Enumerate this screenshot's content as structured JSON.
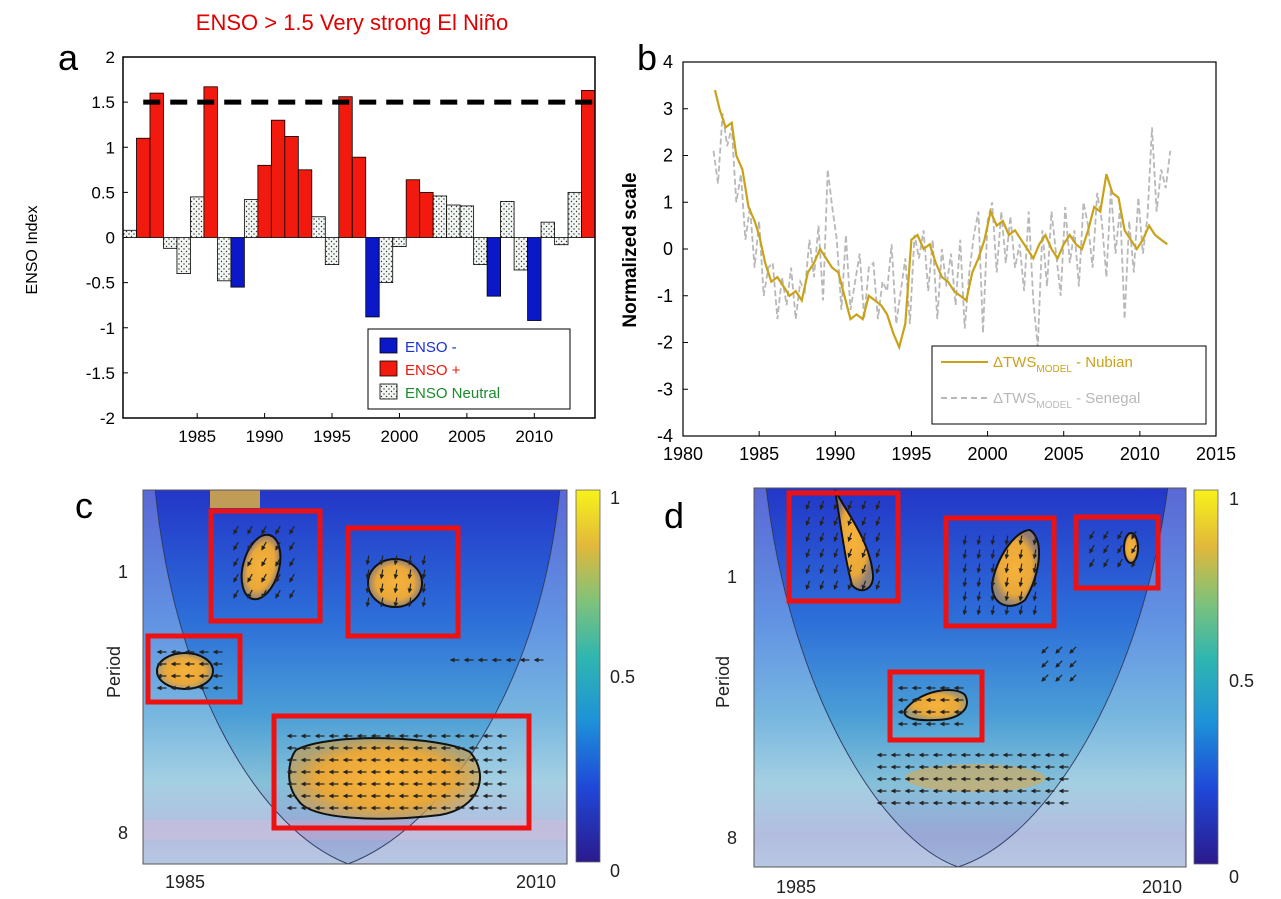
{
  "title": "ENSO > 1.5 Very strong El Niño",
  "panels": {
    "a": "a",
    "b": "b",
    "c": "c",
    "d": "d"
  },
  "chart_data": [
    {
      "panel": "a",
      "type": "bar",
      "ylabel": "ENSO Index",
      "ylim": [
        -2,
        2
      ],
      "yticks": [
        "-2",
        "-1.5",
        "-1",
        "-0.5",
        "0",
        "0.5",
        "1",
        "1.5",
        "2"
      ],
      "xticks": [
        "1985",
        "1990",
        "1995",
        "2000",
        "2005",
        "2010"
      ],
      "threshold": 1.5,
      "colors": {
        "ENSO -": "#0b18c8",
        "ENSO +": "#f21a0e",
        "ENSO Neutral": "#eef4ee"
      },
      "legend": [
        {
          "label": "ENSO -",
          "category": "ENSO -",
          "color": "#1a2fd6"
        },
        {
          "label": "ENSO +",
          "category": "ENSO +",
          "color": "#e8180f"
        },
        {
          "label": "ENSO Neutral",
          "category": "ENSO Neutral",
          "color": "#1a8a2a"
        }
      ],
      "legend_position": "lower-right",
      "years": [
        1980,
        1981,
        1982,
        1983,
        1984,
        1985,
        1986,
        1987,
        1988,
        1989,
        1990,
        1991,
        1992,
        1993,
        1994,
        1995,
        1996,
        1997,
        1998,
        1999,
        2000,
        2001,
        2002,
        2003,
        2004,
        2005,
        2006,
        2007,
        2008,
        2009,
        2010,
        2011,
        2012,
        2013,
        2014
      ],
      "values": [
        0.08,
        1.1,
        1.6,
        -0.12,
        -0.4,
        0.45,
        1.67,
        -0.48,
        -0.55,
        0.42,
        0.8,
        1.3,
        1.12,
        0.75,
        0.23,
        -0.3,
        1.56,
        0.89,
        -0.88,
        -0.5,
        -0.1,
        0.64,
        0.5,
        0.46,
        0.36,
        0.35,
        -0.3,
        -0.65,
        0.4,
        -0.36,
        -0.92,
        0.17,
        -0.08,
        0.5,
        1.63
      ],
      "category": [
        "ENSO Neutral",
        "ENSO +",
        "ENSO +",
        "ENSO Neutral",
        "ENSO Neutral",
        "ENSO Neutral",
        "ENSO +",
        "ENSO Neutral",
        "ENSO -",
        "ENSO Neutral",
        "ENSO +",
        "ENSO +",
        "ENSO +",
        "ENSO +",
        "ENSO Neutral",
        "ENSO Neutral",
        "ENSO +",
        "ENSO +",
        "ENSO -",
        "ENSO Neutral",
        "ENSO Neutral",
        "ENSO +",
        "ENSO +",
        "ENSO Neutral",
        "ENSO Neutral",
        "ENSO Neutral",
        "ENSO Neutral",
        "ENSO -",
        "ENSO Neutral",
        "ENSO Neutral",
        "ENSO -",
        "ENSO Neutral",
        "ENSO Neutral",
        "ENSO Neutral",
        "ENSO +"
      ]
    },
    {
      "panel": "b",
      "type": "line",
      "ylabel": "Normalized scale",
      "xlim": [
        1980,
        2015
      ],
      "ylim": [
        -4,
        4
      ],
      "xticks": [
        "1980",
        "1985",
        "1990",
        "1995",
        "2000",
        "2005",
        "2010",
        "2015"
      ],
      "yticks": [
        "-4",
        "-3",
        "-2",
        "-1",
        "0",
        "1",
        "2",
        "3",
        "4"
      ],
      "legend_position": "lower-right",
      "series": [
        {
          "legend_main": "ΔTWS",
          "legend_sub": "MODEL",
          "legend_suffix": " - Nubian",
          "color": "#c9a21a",
          "style": "solid",
          "x": [
            1982.1,
            1982.4,
            1982.8,
            1983.2,
            1983.5,
            1983.9,
            1984.3,
            1984.7,
            1985.0,
            1985.4,
            1985.8,
            1986.2,
            1986.6,
            1987.0,
            1987.4,
            1987.8,
            1988.2,
            1988.6,
            1989.0,
            1989.4,
            1989.8,
            1990.2,
            1990.6,
            1991.0,
            1991.4,
            1991.8,
            1992.2,
            1992.6,
            1993.0,
            1993.4,
            1993.8,
            1994.2,
            1994.6,
            1995.0,
            1995.4,
            1995.8,
            1996.2,
            1996.6,
            1997.0,
            1997.4,
            1997.8,
            1998.2,
            1998.6,
            1999.0,
            1999.4,
            1999.8,
            2000.2,
            2000.6,
            2001.0,
            2001.4,
            2001.8,
            2002.2,
            2002.6,
            2003.0,
            2003.4,
            2003.8,
            2004.2,
            2004.6,
            2005.0,
            2005.4,
            2005.8,
            2006.2,
            2006.6,
            2007.0,
            2007.4,
            2007.8,
            2008.2,
            2008.6,
            2009.0,
            2009.4,
            2009.8,
            2010.2,
            2010.6,
            2011.0,
            2011.4,
            2011.8
          ],
          "y": [
            3.4,
            3.0,
            2.6,
            2.7,
            2.0,
            1.7,
            0.9,
            0.6,
            0.3,
            -0.3,
            -0.7,
            -0.6,
            -0.8,
            -1.0,
            -0.9,
            -1.1,
            -0.5,
            -0.3,
            0.0,
            -0.2,
            -0.4,
            -0.5,
            -1.0,
            -1.5,
            -1.4,
            -1.5,
            -1.0,
            -1.1,
            -1.2,
            -1.4,
            -1.8,
            -2.1,
            -1.6,
            0.2,
            0.3,
            0.0,
            0.1,
            -0.3,
            -0.6,
            -0.7,
            -0.9,
            -1.0,
            -1.1,
            -0.5,
            -0.2,
            0.2,
            0.8,
            0.5,
            0.6,
            0.3,
            0.4,
            0.2,
            0.0,
            -0.2,
            0.1,
            0.3,
            0.0,
            -0.2,
            0.1,
            0.3,
            0.1,
            0.0,
            0.4,
            0.9,
            0.8,
            1.6,
            1.2,
            1.1,
            0.4,
            0.2,
            0.0,
            0.2,
            0.5,
            0.3,
            0.2,
            0.1
          ]
        },
        {
          "legend_main": "ΔTWS",
          "legend_sub": "MODEL",
          "legend_suffix": " - Senegal",
          "color": "#b8b8b8",
          "style": "dashed",
          "x": [
            1982.0,
            1982.3,
            1982.6,
            1982.9,
            1983.2,
            1983.5,
            1983.8,
            1984.1,
            1984.4,
            1984.7,
            1985.0,
            1985.3,
            1985.6,
            1985.9,
            1986.2,
            1986.5,
            1986.8,
            1987.1,
            1987.4,
            1987.7,
            1988.0,
            1988.3,
            1988.6,
            1988.9,
            1989.2,
            1989.5,
            1989.8,
            1990.1,
            1990.4,
            1990.7,
            1991.0,
            1991.3,
            1991.6,
            1991.9,
            1992.2,
            1992.5,
            1992.8,
            1993.1,
            1993.4,
            1993.7,
            1994.0,
            1994.3,
            1994.6,
            1994.9,
            1995.2,
            1995.5,
            1995.8,
            1996.1,
            1996.4,
            1996.7,
            1997.0,
            1997.3,
            1997.6,
            1997.9,
            1998.2,
            1998.5,
            1998.8,
            1999.1,
            1999.4,
            1999.7,
            2000.0,
            2000.3,
            2000.6,
            2000.9,
            2001.2,
            2001.5,
            2001.8,
            2002.1,
            2002.4,
            2002.7,
            2003.0,
            2003.3,
            2003.6,
            2003.9,
            2004.2,
            2004.5,
            2004.8,
            2005.1,
            2005.4,
            2005.7,
            2006.0,
            2006.3,
            2006.6,
            2006.9,
            2007.2,
            2007.5,
            2007.8,
            2008.1,
            2008.4,
            2008.7,
            2009.0,
            2009.3,
            2009.6,
            2009.9,
            2010.2,
            2010.5,
            2010.8,
            2011.1,
            2011.4,
            2011.7,
            2012.0
          ],
          "y": [
            2.1,
            1.4,
            2.9,
            2.2,
            2.6,
            1.0,
            1.6,
            0.2,
            0.9,
            -0.4,
            0.6,
            -1.0,
            -0.4,
            -0.3,
            -1.5,
            -0.6,
            -1.2,
            -0.4,
            -1.5,
            -0.7,
            -0.9,
            0.2,
            -0.6,
            0.5,
            -1.1,
            1.7,
            0.9,
            0.2,
            -1.3,
            0.3,
            -1.3,
            -0.7,
            -0.1,
            -1.5,
            -0.4,
            -0.3,
            -1.5,
            -0.7,
            -0.9,
            0.1,
            -1.6,
            -0.9,
            -0.2,
            -1.6,
            0.3,
            -0.2,
            0.4,
            -0.9,
            0.2,
            -1.5,
            0.0,
            -0.8,
            -0.1,
            -1.2,
            0.2,
            -1.7,
            -0.5,
            0.3,
            0.8,
            -1.8,
            0.6,
            1.0,
            -0.5,
            0.8,
            -0.3,
            0.7,
            -0.4,
            0.1,
            -0.9,
            0.8,
            -1.1,
            -2.1,
            0.4,
            -0.8,
            0.8,
            -0.1,
            -1.0,
            0.9,
            -0.3,
            0.4,
            -0.8,
            1.0,
            0.5,
            -0.4,
            1.2,
            0.6,
            -0.6,
            1.3,
            -0.1,
            0.9,
            -1.5,
            0.6,
            -0.5,
            1.1,
            -0.1,
            0.7,
            2.6,
            0.8,
            1.7,
            1.3,
            2.1
          ]
        }
      ]
    },
    {
      "panel": "c",
      "type": "heatmap",
      "ylabel": "Period",
      "yticks": [
        "1",
        "8"
      ],
      "xticks": [
        "1985",
        "2010"
      ],
      "colorbar": {
        "min": 0,
        "max": 1,
        "ticks": [
          "1",
          "0.5",
          "0"
        ]
      }
    },
    {
      "panel": "d",
      "type": "heatmap",
      "ylabel": "Period",
      "yticks": [
        "1",
        "8"
      ],
      "xticks": [
        "1985",
        "2010"
      ],
      "colorbar": {
        "min": 0,
        "max": 1,
        "ticks": [
          "1",
          "0.5",
          "0"
        ]
      }
    }
  ]
}
